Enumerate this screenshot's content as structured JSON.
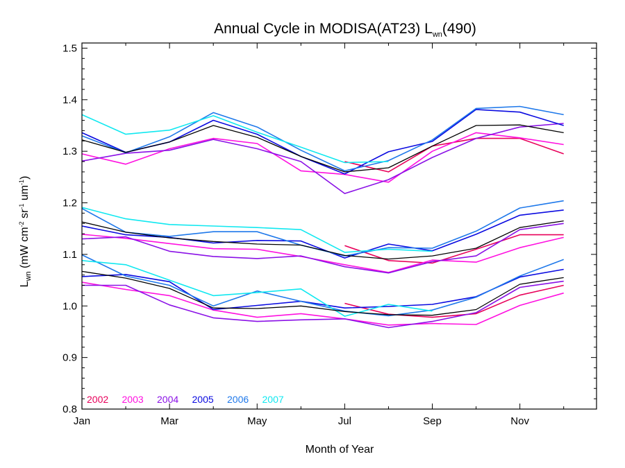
{
  "chart_data": {
    "type": "line",
    "title_prefix": "Annual Cycle in MODISA(AT23) L",
    "title_sub": "wn",
    "title_suffix": "(490)",
    "xlabel": "Month of Year",
    "ylabel": {
      "L": "L",
      "wn": "wn",
      "open": " (mW cm",
      "sup1": "-2",
      "mid1": " sr",
      "sup2": "-1",
      "mid2": " um",
      "sup3": "-1",
      "close": ")"
    },
    "x_ticks": [
      {
        "x": 1,
        "label": "Jan"
      },
      {
        "x": 3,
        "label": "Mar"
      },
      {
        "x": 5,
        "label": "May"
      },
      {
        "x": 7,
        "label": "Jul"
      },
      {
        "x": 9,
        "label": "Sep"
      },
      {
        "x": 11,
        "label": "Nov"
      }
    ],
    "xlim": [
      1,
      12.75
    ],
    "ylim": [
      0.8,
      1.51
    ],
    "y_ticks": [
      0.8,
      0.9,
      1.0,
      1.1,
      1.2,
      1.3,
      1.4,
      1.5
    ],
    "y_tick_labels": [
      "0.8",
      "0.9",
      "1.0",
      "1.1",
      "1.2",
      "1.3",
      "1.4",
      "1.5"
    ],
    "legend_position": "bottom-left",
    "legend": [
      {
        "label": "2002",
        "color": "#e8005a"
      },
      {
        "label": "2003",
        "color": "#ff10e0"
      },
      {
        "label": "2004",
        "color": "#8a10e6"
      },
      {
        "label": "2005",
        "color": "#0a0ae0"
      },
      {
        "label": "2006",
        "color": "#1e78ea"
      },
      {
        "label": "2007",
        "color": "#10e8f0"
      }
    ],
    "series": [
      {
        "year": "2002",
        "group": "upper",
        "color": "#e8005a",
        "points": [
          [
            7.0,
            1.28
          ],
          [
            8.0,
            1.26
          ],
          [
            9.0,
            1.31
          ],
          [
            10.0,
            1.325
          ],
          [
            11.0,
            1.325
          ],
          [
            12.0,
            1.295
          ]
        ]
      },
      {
        "year": "2003",
        "group": "upper",
        "color": "#ff10e0",
        "points": [
          [
            1.0,
            1.295
          ],
          [
            2.0,
            1.275
          ],
          [
            3.0,
            1.305
          ],
          [
            4.0,
            1.325
          ],
          [
            5.0,
            1.315
          ],
          [
            6.0,
            1.262
          ],
          [
            7.0,
            1.255
          ],
          [
            8.0,
            1.24
          ],
          [
            9.0,
            1.3
          ],
          [
            10.0,
            1.336
          ],
          [
            11.0,
            1.326
          ],
          [
            12.0,
            1.313
          ]
        ]
      },
      {
        "year": "2004",
        "group": "upper",
        "color": "#8a10e6",
        "points": [
          [
            1.0,
            1.281
          ],
          [
            2.0,
            1.296
          ],
          [
            3.0,
            1.302
          ],
          [
            4.0,
            1.323
          ],
          [
            5.0,
            1.305
          ],
          [
            6.0,
            1.28
          ],
          [
            7.0,
            1.218
          ],
          [
            8.0,
            1.245
          ],
          [
            9.0,
            1.288
          ],
          [
            10.0,
            1.325
          ],
          [
            11.0,
            1.347
          ],
          [
            12.0,
            1.354
          ]
        ]
      },
      {
        "year": "2005",
        "group": "upper",
        "color": "#0a0ae0",
        "points": [
          [
            1.0,
            1.336
          ],
          [
            2.0,
            1.298
          ],
          [
            3.0,
            1.318
          ],
          [
            4.0,
            1.36
          ],
          [
            5.0,
            1.333
          ],
          [
            6.0,
            1.29
          ],
          [
            7.0,
            1.256
          ],
          [
            8.0,
            1.299
          ],
          [
            9.0,
            1.319
          ],
          [
            10.0,
            1.381
          ],
          [
            11.0,
            1.376
          ],
          [
            12.0,
            1.35
          ]
        ]
      },
      {
        "year": "2006",
        "group": "upper",
        "color": "#1e78ea",
        "points": [
          [
            1.0,
            1.33
          ],
          [
            2.0,
            1.297
          ],
          [
            3.0,
            1.328
          ],
          [
            4.0,
            1.375
          ],
          [
            5.0,
            1.347
          ],
          [
            6.0,
            1.302
          ],
          [
            7.0,
            1.262
          ],
          [
            8.0,
            1.282
          ],
          [
            9.0,
            1.322
          ],
          [
            10.0,
            1.383
          ],
          [
            11.0,
            1.387
          ],
          [
            12.0,
            1.371
          ]
        ]
      },
      {
        "year": "2007",
        "group": "upper",
        "color": "#10e8f0",
        "points": [
          [
            1.0,
            1.371
          ],
          [
            2.0,
            1.333
          ],
          [
            3.0,
            1.341
          ],
          [
            4.0,
            1.369
          ],
          [
            5.0,
            1.337
          ],
          [
            6.0,
            1.308
          ],
          [
            7.0,
            1.278
          ],
          [
            8.0,
            1.28
          ]
        ]
      },
      {
        "year": "",
        "group": "upper",
        "color": "#000000",
        "points": [
          [
            1.0,
            1.322
          ],
          [
            2.0,
            1.298
          ],
          [
            3.0,
            1.318
          ],
          [
            4.0,
            1.35
          ],
          [
            5.0,
            1.327
          ],
          [
            6.0,
            1.29
          ],
          [
            7.0,
            1.26
          ],
          [
            8.0,
            1.268
          ],
          [
            9.0,
            1.31
          ],
          [
            10.0,
            1.35
          ],
          [
            11.0,
            1.351
          ],
          [
            12.0,
            1.336
          ]
        ]
      },
      {
        "year": "2002",
        "group": "middle",
        "color": "#e8005a",
        "points": [
          [
            7.0,
            1.117
          ],
          [
            8.0,
            1.088
          ],
          [
            9.0,
            1.083
          ],
          [
            10.0,
            1.11
          ],
          [
            11.0,
            1.138
          ],
          [
            12.0,
            1.138
          ]
        ]
      },
      {
        "year": "2003",
        "group": "middle",
        "color": "#ff10e0",
        "points": [
          [
            1.0,
            1.139
          ],
          [
            2.0,
            1.131
          ],
          [
            3.0,
            1.121
          ],
          [
            4.0,
            1.111
          ],
          [
            5.0,
            1.11
          ],
          [
            6.0,
            1.096
          ],
          [
            7.0,
            1.08
          ],
          [
            8.0,
            1.065
          ],
          [
            9.0,
            1.089
          ],
          [
            10.0,
            1.085
          ],
          [
            11.0,
            1.113
          ],
          [
            12.0,
            1.133
          ]
        ]
      },
      {
        "year": "2004",
        "group": "middle",
        "color": "#8a10e6",
        "points": [
          [
            1.0,
            1.13
          ],
          [
            2.0,
            1.134
          ],
          [
            3.0,
            1.106
          ],
          [
            4.0,
            1.096
          ],
          [
            5.0,
            1.092
          ],
          [
            6.0,
            1.097
          ],
          [
            7.0,
            1.076
          ],
          [
            8.0,
            1.064
          ],
          [
            9.0,
            1.086
          ],
          [
            10.0,
            1.097
          ],
          [
            11.0,
            1.148
          ],
          [
            12.0,
            1.16
          ]
        ]
      },
      {
        "year": "2005",
        "group": "middle",
        "color": "#0a0ae0",
        "points": [
          [
            1.0,
            1.155
          ],
          [
            2.0,
            1.138
          ],
          [
            3.0,
            1.133
          ],
          [
            4.0,
            1.122
          ],
          [
            5.0,
            1.127
          ],
          [
            6.0,
            1.126
          ],
          [
            7.0,
            1.093
          ],
          [
            8.0,
            1.12
          ],
          [
            9.0,
            1.107
          ],
          [
            10.0,
            1.139
          ],
          [
            11.0,
            1.176
          ],
          [
            12.0,
            1.186
          ]
        ]
      },
      {
        "year": "2006",
        "group": "middle",
        "color": "#1e78ea",
        "points": [
          [
            1.0,
            1.189
          ],
          [
            2.0,
            1.143
          ],
          [
            3.0,
            1.135
          ],
          [
            4.0,
            1.144
          ],
          [
            5.0,
            1.144
          ],
          [
            6.0,
            1.118
          ],
          [
            7.0,
            1.097
          ],
          [
            8.0,
            1.113
          ],
          [
            9.0,
            1.112
          ],
          [
            10.0,
            1.145
          ],
          [
            11.0,
            1.19
          ],
          [
            12.0,
            1.204
          ]
        ]
      },
      {
        "year": "2007",
        "group": "middle",
        "color": "#10e8f0",
        "points": [
          [
            1.0,
            1.191
          ],
          [
            2.0,
            1.169
          ],
          [
            3.0,
            1.158
          ],
          [
            4.0,
            1.155
          ],
          [
            5.0,
            1.152
          ],
          [
            6.0,
            1.148
          ],
          [
            7.0,
            1.104
          ],
          [
            8.0,
            1.11
          ],
          [
            9.0,
            1.106
          ]
        ]
      },
      {
        "year": "",
        "group": "middle",
        "color": "#000000",
        "points": [
          [
            1.0,
            1.163
          ],
          [
            2.0,
            1.143
          ],
          [
            3.0,
            1.132
          ],
          [
            4.0,
            1.125
          ],
          [
            5.0,
            1.12
          ],
          [
            6.0,
            1.118
          ],
          [
            7.0,
            1.098
          ],
          [
            8.0,
            1.091
          ],
          [
            9.0,
            1.097
          ],
          [
            10.0,
            1.112
          ],
          [
            11.0,
            1.152
          ],
          [
            12.0,
            1.165
          ]
        ]
      },
      {
        "year": "2002",
        "group": "lower",
        "color": "#e8005a",
        "points": [
          [
            7.0,
            1.005
          ],
          [
            8.0,
            0.984
          ],
          [
            9.0,
            0.978
          ],
          [
            10.0,
            0.985
          ],
          [
            11.0,
            1.021
          ],
          [
            12.0,
            1.04
          ]
        ]
      },
      {
        "year": "2003",
        "group": "lower",
        "color": "#ff10e0",
        "points": [
          [
            1.0,
            1.046
          ],
          [
            2.0,
            1.032
          ],
          [
            3.0,
            1.02
          ],
          [
            4.0,
            0.992
          ],
          [
            5.0,
            0.978
          ],
          [
            6.0,
            0.985
          ],
          [
            7.0,
            0.975
          ],
          [
            8.0,
            0.963
          ],
          [
            9.0,
            0.966
          ],
          [
            10.0,
            0.964
          ],
          [
            11.0,
            1.001
          ],
          [
            12.0,
            1.025
          ]
        ]
      },
      {
        "year": "2004",
        "group": "lower",
        "color": "#8a10e6",
        "points": [
          [
            1.0,
            1.04
          ],
          [
            2.0,
            1.04
          ],
          [
            3.0,
            1.002
          ],
          [
            4.0,
            0.977
          ],
          [
            5.0,
            0.97
          ],
          [
            6.0,
            0.973
          ],
          [
            7.0,
            0.975
          ],
          [
            8.0,
            0.958
          ],
          [
            9.0,
            0.97
          ],
          [
            10.0,
            0.987
          ],
          [
            11.0,
            1.036
          ],
          [
            12.0,
            1.048
          ]
        ]
      },
      {
        "year": "2005",
        "group": "lower",
        "color": "#0a0ae0",
        "points": [
          [
            1.0,
            1.057
          ],
          [
            2.0,
            1.061
          ],
          [
            3.0,
            1.047
          ],
          [
            4.0,
            0.993
          ],
          [
            5.0,
            1.001
          ],
          [
            6.0,
            1.009
          ],
          [
            7.0,
            0.996
          ],
          [
            8.0,
            0.999
          ],
          [
            9.0,
            1.003
          ],
          [
            10.0,
            1.018
          ],
          [
            11.0,
            1.056
          ],
          [
            12.0,
            1.071
          ]
        ]
      },
      {
        "year": "2006",
        "group": "lower",
        "color": "#1e78ea",
        "points": [
          [
            1.0,
            1.099
          ],
          [
            2.0,
            1.058
          ],
          [
            3.0,
            1.04
          ],
          [
            4.0,
            1.0
          ],
          [
            5.0,
            1.029
          ],
          [
            6.0,
            1.009
          ],
          [
            7.0,
            0.99
          ],
          [
            8.0,
            0.981
          ],
          [
            9.0,
            0.992
          ],
          [
            10.0,
            1.017
          ],
          [
            11.0,
            1.058
          ],
          [
            12.0,
            1.09
          ]
        ]
      },
      {
        "year": "2007",
        "group": "lower",
        "color": "#10e8f0",
        "points": [
          [
            1.0,
            1.088
          ],
          [
            2.0,
            1.08
          ],
          [
            3.0,
            1.05
          ],
          [
            4.0,
            1.02
          ],
          [
            5.0,
            1.026
          ],
          [
            6.0,
            1.033
          ],
          [
            7.0,
            0.98
          ],
          [
            8.0,
            1.003
          ],
          [
            9.0,
            0.99
          ]
        ]
      },
      {
        "year": "",
        "group": "lower",
        "color": "#000000",
        "points": [
          [
            1.0,
            1.067
          ],
          [
            2.0,
            1.054
          ],
          [
            3.0,
            1.034
          ],
          [
            4.0,
            0.996
          ],
          [
            5.0,
            0.995
          ],
          [
            6.0,
            1.0
          ],
          [
            7.0,
            0.989
          ],
          [
            8.0,
            0.983
          ],
          [
            9.0,
            0.982
          ],
          [
            10.0,
            0.993
          ],
          [
            11.0,
            1.042
          ],
          [
            12.0,
            1.055
          ]
        ]
      }
    ]
  }
}
